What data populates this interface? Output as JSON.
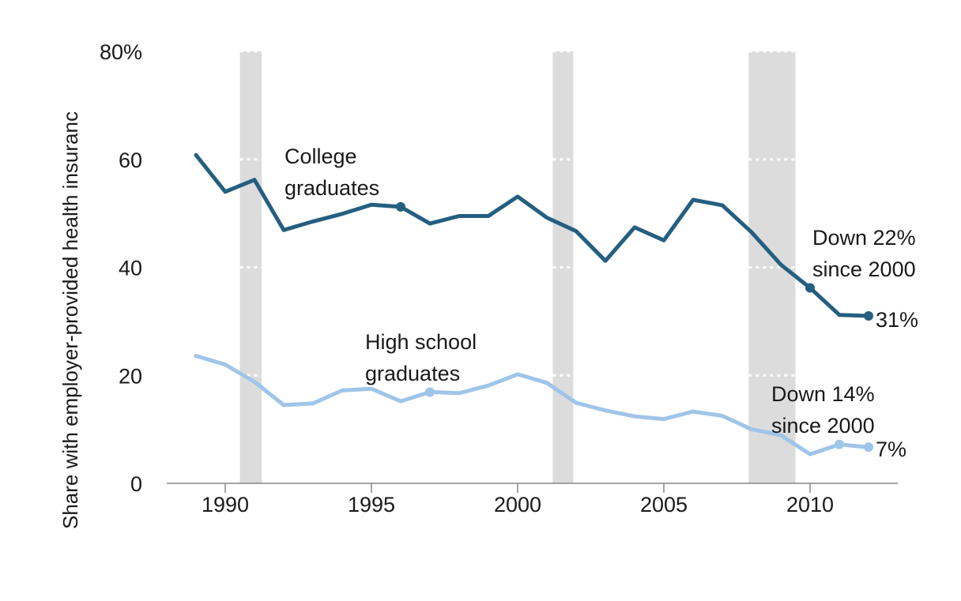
{
  "chart_data": {
    "type": "line",
    "ylabel": "Share with employer-provided health insuranc",
    "ylim": [
      0,
      80
    ],
    "yticks": [
      "0",
      "20",
      "40",
      "60",
      "80%"
    ],
    "xlim": [
      1988,
      2013
    ],
    "xticks": [
      "1990",
      "1995",
      "2000",
      "2005",
      "2010"
    ],
    "recessions": [
      [
        1990.5,
        1991.25
      ],
      [
        2001.2,
        2001.9
      ],
      [
        2007.9,
        2009.5
      ]
    ],
    "x": [
      1989,
      1990,
      1991,
      1992,
      1993,
      1994,
      1995,
      1996,
      1997,
      1998,
      1999,
      2000,
      2001,
      2002,
      2003,
      2004,
      2005,
      2006,
      2007,
      2008,
      2009,
      2010,
      2011,
      2012
    ],
    "series": [
      {
        "name": "College graduates",
        "label_lines": [
          "College",
          "graduates"
        ],
        "color": "#255f80",
        "values": [
          60.8,
          54.0,
          56.2,
          46.9,
          48.5,
          49.9,
          51.6,
          51.2,
          48.1,
          49.5,
          49.5,
          53.1,
          49.2,
          46.7,
          41.2,
          47.4,
          45.0,
          52.5,
          51.5,
          46.5,
          40.5,
          36.2,
          31.2,
          31.0
        ],
        "marker_years": [
          1996,
          2010,
          2012
        ],
        "end_label": "31%",
        "note_lines": [
          "Down 22%",
          "since 2000"
        ]
      },
      {
        "name": "High school graduates",
        "label_lines": [
          "High school",
          "graduates"
        ],
        "color": "#9fc5e8",
        "values": [
          23.6,
          22.0,
          18.8,
          14.5,
          14.8,
          17.2,
          17.5,
          15.2,
          16.9,
          16.7,
          18.1,
          20.2,
          18.6,
          14.9,
          13.5,
          12.4,
          11.9,
          13.3,
          12.5,
          10.0,
          8.9,
          5.4,
          7.2,
          6.7
        ],
        "marker_years": [
          1997,
          2011,
          2012
        ],
        "end_label": "7%",
        "note_lines": [
          "Down 14%",
          "since 2000"
        ]
      }
    ],
    "colors": {
      "recession": "#dcdcdc",
      "axis": "#888888"
    }
  }
}
